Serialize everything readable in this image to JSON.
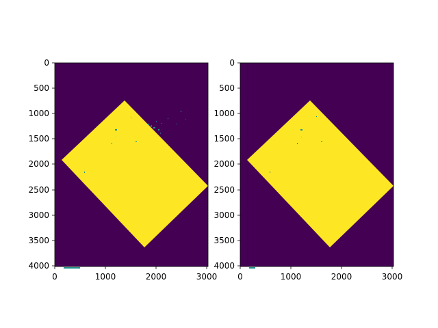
{
  "colors": {
    "background": "#440154",
    "mask": "#fde725",
    "speckle_teal": "#21918c",
    "speckle_blue": "#3b528b",
    "speckle_green": "#5ec962"
  },
  "panels": [
    {
      "name": "left-panel",
      "xlim": [
        0,
        3024
      ],
      "ylim": [
        4032,
        0
      ],
      "xticks": [
        "0",
        "1000",
        "2000",
        "3000"
      ],
      "yticks": [
        "0",
        "500",
        "1000",
        "1500",
        "2000",
        "2500",
        "3000",
        "3500",
        "4000"
      ],
      "noisy": true
    },
    {
      "name": "right-panel",
      "xlim": [
        0,
        3024
      ],
      "ylim": [
        4032,
        0
      ],
      "xticks": [
        "0",
        "1000",
        "2000",
        "3000"
      ],
      "yticks": [
        "0",
        "500",
        "1000",
        "1500",
        "2000",
        "2500",
        "3000",
        "3500",
        "4000"
      ],
      "noisy": false
    }
  ]
}
